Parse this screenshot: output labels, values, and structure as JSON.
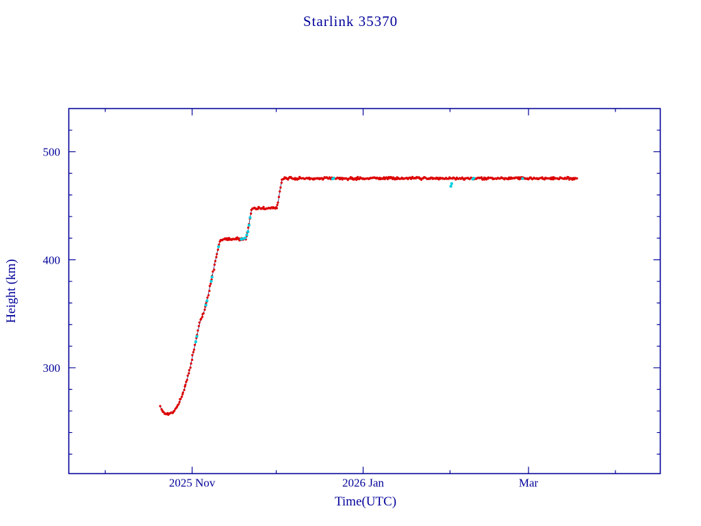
{
  "page": {
    "background": "#ffffff"
  },
  "chart_data": {
    "type": "scatter",
    "title": "Starlink 35370",
    "xlabel": "Time(UTC)",
    "ylabel": "Height (km)",
    "x_unit": "days relative to 2025-11-01",
    "xlim": [
      -44,
      167
    ],
    "ylim": [
      202,
      540
    ],
    "grid": false,
    "legend": "none",
    "colors": {
      "axis_text": "#000099",
      "frame": "#000099",
      "connect_line": "#14146e",
      "red_series": "#dd0000",
      "cyan_series": "#00cfdf",
      "background": "#ffffff"
    },
    "yticks": {
      "major": [
        300,
        400,
        500
      ],
      "minor": [
        220,
        240,
        260,
        280,
        320,
        340,
        360,
        380,
        420,
        440,
        460,
        480,
        520
      ]
    },
    "xticks": {
      "major": [
        {
          "day": 0,
          "label": "2025 Nov"
        },
        {
          "day": 61,
          "label": "2026 Jan"
        },
        {
          "day": 120,
          "label": "Mar"
        }
      ],
      "minor": [
        -31,
        30,
        92,
        151
      ]
    },
    "series": [
      {
        "name": "height-red",
        "color": "#dd0000",
        "marker": "asterisk",
        "points": [
          [
            -11.3,
            264
          ],
          [
            -11.0,
            262
          ],
          [
            -10.7,
            260.5
          ],
          [
            -10.3,
            259
          ],
          [
            -9.9,
            258
          ],
          [
            -9.4,
            257.5
          ],
          [
            -8.9,
            257.3
          ],
          [
            -8.4,
            257.4
          ],
          [
            -7.9,
            257.8
          ],
          [
            -7.4,
            258.4
          ],
          [
            -6.9,
            259.3
          ],
          [
            -6.4,
            260.5
          ],
          [
            -5.9,
            262
          ],
          [
            -5.4,
            264
          ],
          [
            -4.9,
            266.3
          ],
          [
            -4.4,
            269
          ],
          [
            -3.9,
            272
          ],
          [
            -3.4,
            275.4
          ],
          [
            -2.9,
            279.2
          ],
          [
            -2.4,
            283.4
          ],
          [
            -1.9,
            288
          ],
          [
            -1.4,
            293
          ],
          [
            -0.9,
            298.3
          ],
          [
            -0.4,
            304
          ],
          [
            0.1,
            310
          ],
          [
            0.6,
            316
          ],
          [
            1.1,
            322
          ],
          [
            1.6,
            328
          ],
          [
            2.1,
            334
          ],
          [
            2.6,
            340
          ],
          [
            3.1,
            345
          ],
          [
            3.6,
            348
          ],
          [
            4.1,
            351
          ],
          [
            4.6,
            355
          ],
          [
            5.1,
            360
          ],
          [
            5.6,
            366
          ],
          [
            6.1,
            372
          ],
          [
            6.6,
            378
          ],
          [
            7.1,
            384
          ],
          [
            7.6,
            390
          ],
          [
            8.1,
            397
          ],
          [
            8.6,
            403
          ],
          [
            9.1,
            409
          ],
          [
            9.6,
            414
          ],
          [
            10.0,
            417
          ],
          [
            10.4,
            419
          ],
          [
            11.0,
            419.3
          ],
          [
            13.0,
            419.2
          ],
          [
            15.0,
            419.3
          ],
          [
            17.0,
            419.2
          ],
          [
            19.0,
            419.3
          ],
          [
            19.4,
            420.5
          ],
          [
            19.8,
            425
          ],
          [
            20.2,
            431
          ],
          [
            20.6,
            438
          ],
          [
            21.0,
            444
          ],
          [
            21.4,
            447
          ],
          [
            21.8,
            447.8
          ],
          [
            23.0,
            447.6
          ],
          [
            25.0,
            447.7
          ],
          [
            27.0,
            447.6
          ],
          [
            29.0,
            447.7
          ],
          [
            30.1,
            448
          ],
          [
            30.5,
            451
          ],
          [
            30.9,
            457
          ],
          [
            31.3,
            464
          ],
          [
            31.7,
            470
          ],
          [
            32.1,
            474
          ],
          [
            32.5,
            475.5
          ],
          [
            33.0,
            475.3
          ],
          [
            40.0,
            475.4
          ],
          [
            50.0,
            475.3
          ],
          [
            60.0,
            475.3
          ],
          [
            70.0,
            475.4
          ],
          [
            80.0,
            475.4
          ],
          [
            90.0,
            475.3
          ],
          [
            100.0,
            475.3
          ],
          [
            110.0,
            475.4
          ],
          [
            120.0,
            475.4
          ],
          [
            130.0,
            475.3
          ],
          [
            137.6,
            475.3
          ]
        ]
      },
      {
        "name": "height-cyan",
        "color": "#00cfdf",
        "marker": "asterisk",
        "points": [
          [
            1.3,
            324
          ],
          [
            1.7,
            329
          ],
          [
            4.9,
            358
          ],
          [
            5.3,
            362
          ],
          [
            6.8,
            380
          ],
          [
            7.1,
            384
          ],
          [
            9.4,
            412
          ],
          [
            17.5,
            419
          ],
          [
            18.1,
            419.5
          ],
          [
            18.9,
            420
          ],
          [
            19.5,
            423
          ],
          [
            19.9,
            426
          ],
          [
            20.3,
            432
          ],
          [
            20.7,
            439
          ],
          [
            50.1,
            474.8
          ],
          [
            50.5,
            475.6
          ],
          [
            92.3,
            468
          ],
          [
            92.6,
            470.5
          ],
          [
            100.1,
            474.7
          ],
          [
            100.5,
            475.5
          ],
          [
            117.9,
            475.2
          ]
        ]
      }
    ]
  }
}
